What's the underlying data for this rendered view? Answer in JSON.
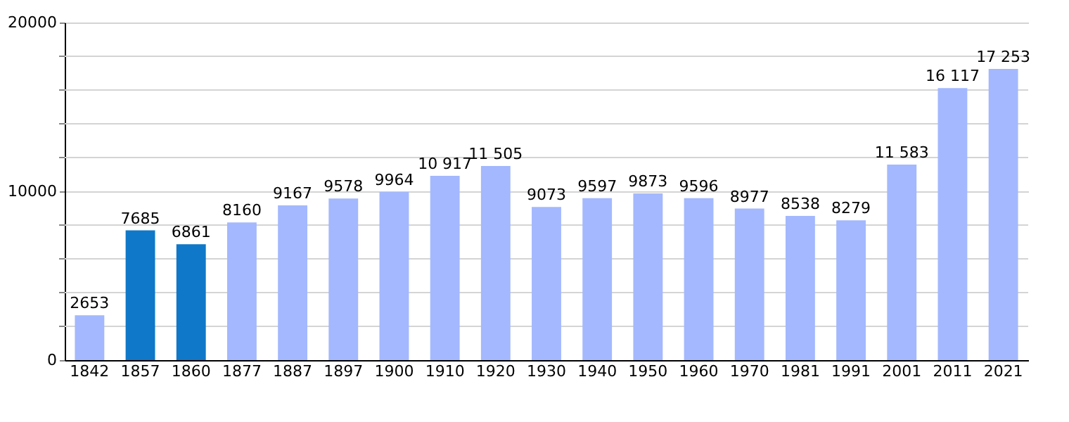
{
  "chart_data": {
    "type": "bar",
    "categories": [
      "1842",
      "1857",
      "1860",
      "1877",
      "1887",
      "1897",
      "1900",
      "1910",
      "1920",
      "1930",
      "1940",
      "1950",
      "1960",
      "1970",
      "1981",
      "1991",
      "2001",
      "2011",
      "2021"
    ],
    "values": [
      2653,
      7685,
      6861,
      8160,
      9167,
      9578,
      9964,
      10917,
      11505,
      9073,
      9597,
      9873,
      9596,
      8977,
      8538,
      8279,
      11583,
      16117,
      17253
    ],
    "value_labels": [
      "2653",
      "7685",
      "6861",
      "8160",
      "9167",
      "9578",
      "9964",
      "10 917",
      "11 505",
      "9073",
      "9597",
      "9873",
      "9596",
      "8977",
      "8538",
      "8279",
      "11 583",
      "16 117",
      "17 253"
    ],
    "colors": [
      "#a3b8fe",
      "#0f78c8",
      "#0f78c8",
      "#a3b8fe",
      "#a3b8fe",
      "#a3b8fe",
      "#a3b8fe",
      "#a3b8fe",
      "#a3b8fe",
      "#a3b8fe",
      "#a3b8fe",
      "#a3b8fe",
      "#a3b8fe",
      "#a3b8fe",
      "#a3b8fe",
      "#a3b8fe",
      "#a3b8fe",
      "#a3b8fe",
      "#a3b8fe"
    ],
    "ylim": [
      0,
      20000
    ],
    "yticks": [
      0,
      {
        "value": 2000,
        "label": null
      },
      {
        "value": 4000,
        "label": null
      },
      {
        "value": 6000,
        "label": null
      },
      {
        "value": 8000,
        "label": null
      },
      10000,
      {
        "value": 12000,
        "label": null
      },
      {
        "value": 14000,
        "label": null
      },
      {
        "value": 16000,
        "label": null
      },
      {
        "value": 18000,
        "label": null
      },
      20000
    ],
    "grid": "y"
  }
}
